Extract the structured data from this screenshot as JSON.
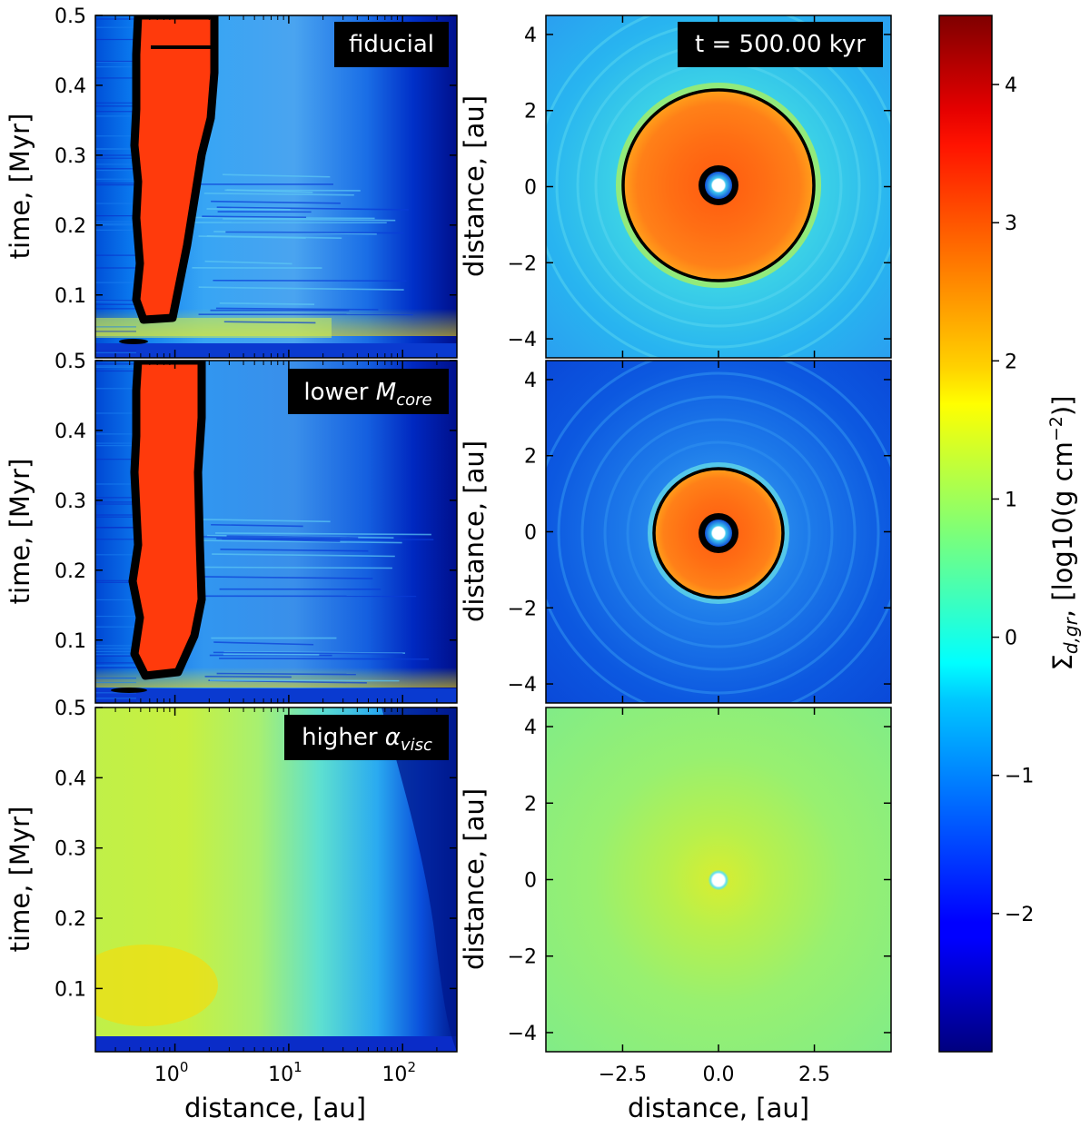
{
  "chart_data": [
    {
      "type": "heatmap",
      "panel": "left-top",
      "annotation": "fiducial",
      "xlabel": "distance, [au]",
      "ylabel": "time, [Myr]",
      "xscale": "log",
      "xlim": [
        0.2,
        300
      ],
      "ylim": [
        0.01,
        0.5
      ],
      "yticks": [
        0.1,
        0.2,
        0.3,
        0.4,
        0.5
      ],
      "xticks": [
        "10^0",
        "10^1",
        "10^2"
      ],
      "dust_ring": {
        "t_start": 0.06,
        "r_inner": [
          0.5,
          0.6
        ],
        "r_outer": [
          1.2,
          2.3
        ]
      },
      "background": "cyan-blue decreasing outward"
    },
    {
      "type": "heatmap",
      "panel": "right-top",
      "annotation": "t = 500.00 kyr",
      "xlabel": "distance, [au]",
      "ylabel": "distance, [au]",
      "xlim": [
        -4.5,
        4.5
      ],
      "ylim": [
        -4.5,
        4.5
      ],
      "yticks": [
        -4,
        -2,
        0,
        2,
        4
      ],
      "xticks": [
        -2.5,
        0.0,
        2.5
      ],
      "ring_outer_radius": 2.5,
      "inner_hole_radius": 0.5
    },
    {
      "type": "heatmap",
      "panel": "left-middle",
      "annotation": "lower",
      "annotation_symbol": "M",
      "annotation_sub": "core",
      "xlabel": "distance, [au]",
      "ylabel": "time, [Myr]",
      "xscale": "log",
      "xlim": [
        0.2,
        300
      ],
      "ylim": [
        0.01,
        0.5
      ],
      "yticks": [
        0.1,
        0.2,
        0.3,
        0.4,
        0.5
      ],
      "dust_ring": {
        "t_start": 0.05,
        "r_inner": [
          0.45,
          0.6
        ],
        "r_outer": [
          1.0,
          1.5
        ]
      }
    },
    {
      "type": "heatmap",
      "panel": "right-middle",
      "xlabel": "distance, [au]",
      "ylabel": "distance, [au]",
      "xlim": [
        -4.5,
        4.5
      ],
      "ylim": [
        -4.5,
        4.5
      ],
      "yticks": [
        -4,
        -2,
        0,
        2,
        4
      ],
      "ring_outer_radius": 1.7,
      "inner_hole_radius": 0.5
    },
    {
      "type": "heatmap",
      "panel": "left-bottom",
      "annotation": "higher",
      "annotation_symbol": "α",
      "annotation_sub": "visc",
      "xlabel": "distance, [au]",
      "ylabel": "time, [Myr]",
      "xscale": "log",
      "xlim": [
        0.2,
        300
      ],
      "ylim": [
        0.01,
        0.5
      ],
      "yticks": [
        0.1,
        0.2,
        0.3,
        0.4,
        0.5
      ],
      "xticks": [
        "10^0",
        "10^1",
        "10^2"
      ]
    },
    {
      "type": "heatmap",
      "panel": "right-bottom",
      "xlabel": "distance, [au]",
      "ylabel": "distance, [au]",
      "xlim": [
        -4.5,
        4.5
      ],
      "ylim": [
        -4.5,
        4.5
      ],
      "yticks": [
        -4,
        -2,
        0,
        2,
        4
      ],
      "xticks": [
        -2.5,
        0.0,
        2.5
      ],
      "inner_hole_radius": 0.2
    }
  ],
  "colorbar": {
    "label_symbol": "Σ",
    "label_sub": "d,gr",
    "label_rest": ", [log10(g cm",
    "label_sup": "−2",
    "label_end": ")]",
    "range": [
      -3,
      4.5
    ],
    "ticks": [
      4,
      3,
      2,
      1,
      0,
      -1,
      -2
    ],
    "tick_labels": [
      "4",
      "3",
      "2",
      "1",
      "0",
      "−1",
      "−2"
    ],
    "colormap": "jet"
  },
  "labels": {
    "time": "time, [Myr]",
    "distance": "distance, [au]",
    "fiducial": "fiducial",
    "t_label": "t = 500.00 kyr",
    "lower": "lower ",
    "M": "M",
    "core": "core",
    "higher": "higher ",
    "alpha": "α",
    "visc": "visc",
    "ytick_time": [
      "0.1",
      "0.2",
      "0.3",
      "0.4",
      "0.5"
    ],
    "ytick_dist": [
      "4",
      "2",
      "0",
      "−2",
      "−4"
    ],
    "xtick_dist": [
      "−2.5",
      "0.0",
      "2.5"
    ],
    "xtick_log_base": "10",
    "xtick_log_exp": [
      "0",
      "1",
      "2"
    ]
  }
}
